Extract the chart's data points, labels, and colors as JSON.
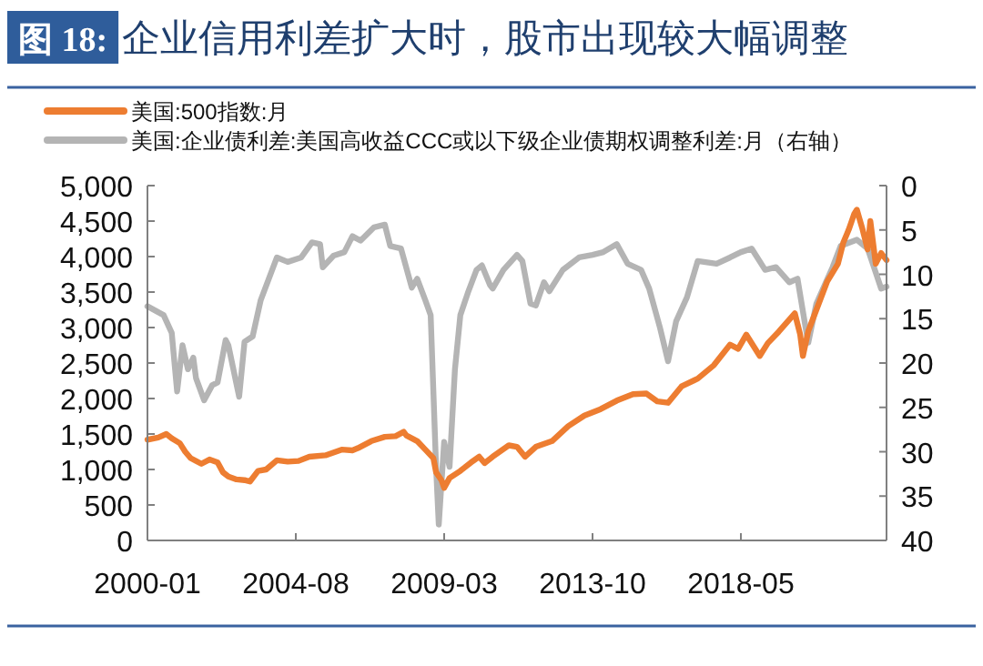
{
  "chart_data": {
    "type": "line",
    "title": "企业信用利差扩大时，股市出现较大幅调整",
    "annotations": [
      "图 18:"
    ],
    "legend": "top",
    "grid": false,
    "line_style": "solid",
    "marker": "none",
    "xlim": [
      "2000-01",
      "2022-11"
    ],
    "xticks": [
      "2000-01",
      "2004-08",
      "2009-03",
      "2013-10",
      "2018-05"
    ],
    "ylim": [
      0,
      5000
    ],
    "yticks": [
      {
        "value": 0,
        "label": "0"
      },
      {
        "value": 500,
        "label": "500"
      },
      {
        "value": 1000,
        "label": "1,000"
      },
      {
        "value": 1500,
        "label": "1,500"
      },
      {
        "value": 2000,
        "label": "2,000"
      },
      {
        "value": 2500,
        "label": "2,500"
      },
      {
        "value": 3000,
        "label": "3,000"
      },
      {
        "value": 3500,
        "label": "3,500"
      },
      {
        "value": 4000,
        "label": "4,000"
      },
      {
        "value": 4500,
        "label": "4,500"
      },
      {
        "value": 5000,
        "label": "5,000"
      }
    ],
    "y2lim": [
      40,
      0
    ],
    "y2ticks": [
      0,
      5,
      10,
      15,
      20,
      25,
      30,
      35,
      40
    ],
    "series": [
      {
        "name": "美国:企业债利差:美国高收益CCC或以下级企业债期权调整利差:月（右轴）",
        "color": "#b4b4b4",
        "axis": "y2",
        "x": [
          "2000-01",
          "2000-07",
          "2000-10",
          "2000-12",
          "2001-02",
          "2001-04",
          "2001-06",
          "2001-07",
          "2001-10",
          "2002-01",
          "2002-03",
          "2002-06",
          "2002-07",
          "2002-11",
          "2003-01",
          "2003-04",
          "2003-07",
          "2004-01",
          "2004-05",
          "2004-10",
          "2005-02",
          "2005-05",
          "2005-06",
          "2005-10",
          "2006-02",
          "2006-05",
          "2006-08",
          "2007-01",
          "2007-05",
          "2007-07",
          "2007-11",
          "2008-03",
          "2008-05",
          "2008-08",
          "2008-10",
          "2008-12",
          "2009-01",
          "2009-03",
          "2009-05",
          "2009-07",
          "2009-09",
          "2009-12",
          "2010-03",
          "2010-05",
          "2010-08",
          "2010-09",
          "2011-01",
          "2011-06",
          "2011-08",
          "2011-11",
          "2012-01",
          "2012-04",
          "2012-06",
          "2012-11",
          "2013-05",
          "2013-10",
          "2014-02",
          "2014-07",
          "2014-11",
          "2015-04",
          "2015-07",
          "2015-11",
          "2016-02",
          "2016-05",
          "2016-09",
          "2017-01",
          "2017-08",
          "2018-01",
          "2018-05",
          "2018-09",
          "2019-02",
          "2019-06",
          "2019-11",
          "2020-02",
          "2020-05",
          "2020-06",
          "2020-09",
          "2021-03",
          "2021-06",
          "2021-12",
          "2022-04",
          "2022-07",
          "2022-09",
          "2022-11"
        ],
        "values": [
          13.6,
          14.6,
          16.6,
          23.2,
          18,
          20.7,
          19.4,
          21.7,
          24.2,
          22.5,
          22.2,
          17.4,
          18,
          23.8,
          17.6,
          17,
          12.9,
          8.1,
          8.6,
          8.1,
          6.4,
          6.6,
          9.2,
          7.9,
          7.5,
          5.7,
          6.2,
          4.7,
          4.4,
          6.8,
          7.1,
          11.5,
          10.5,
          12.9,
          14.6,
          31.7,
          38.2,
          28.9,
          31.7,
          20.7,
          14.6,
          11.9,
          9.5,
          9.0,
          11.2,
          11.6,
          9.5,
          7.8,
          8.5,
          13.3,
          13.5,
          10.9,
          11.9,
          9.5,
          8.1,
          7.8,
          7.5,
          6.6,
          8.8,
          9.5,
          11.6,
          16,
          19.8,
          15.3,
          12.6,
          8.5,
          8.8,
          8.1,
          7.5,
          7.1,
          9.5,
          9.2,
          10.9,
          10.5,
          16,
          17.7,
          13.3,
          9.2,
          6.8,
          6.1,
          7.1,
          9.8,
          11.6,
          11.4
        ]
      },
      {
        "name": "美国:500指数:月",
        "color": "#ed7d31",
        "x": [
          "2000-01",
          "2000-05",
          "2000-08",
          "2000-10",
          "2001-01",
          "2001-03",
          "2001-05",
          "2001-09",
          "2001-12",
          "2002-03",
          "2002-05",
          "2002-07",
          "2002-10",
          "2003-01",
          "2003-03",
          "2003-06",
          "2003-09",
          "2004-01",
          "2004-05",
          "2004-09",
          "2005-01",
          "2005-07",
          "2006-01",
          "2006-05",
          "2006-07",
          "2006-12",
          "2007-05",
          "2007-09",
          "2007-12",
          "2008-01",
          "2008-05",
          "2008-08",
          "2008-11",
          "2008-12",
          "2009-02",
          "2009-03",
          "2009-05",
          "2009-09",
          "2010-01",
          "2010-04",
          "2010-06",
          "2010-09",
          "2011-03",
          "2011-06",
          "2011-09",
          "2012-01",
          "2012-07",
          "2013-01",
          "2013-07",
          "2014-01",
          "2014-07",
          "2015-01",
          "2015-06",
          "2015-10",
          "2016-02",
          "2016-07",
          "2017-01",
          "2017-07",
          "2018-01",
          "2018-04",
          "2018-07",
          "2018-12",
          "2019-03",
          "2019-07",
          "2020-01",
          "2020-03",
          "2020-04",
          "2020-06",
          "2020-09",
          "2021-01",
          "2021-05",
          "2021-07",
          "2021-09",
          "2021-11",
          "2021-12",
          "2022-02",
          "2022-04",
          "2022-05",
          "2022-07",
          "2022-09",
          "2022-11"
        ],
        "values": [
          1420,
          1450,
          1500,
          1440,
          1370,
          1250,
          1160,
          1080,
          1140,
          1100,
          960,
          900,
          860,
          850,
          830,
          980,
          1000,
          1130,
          1110,
          1120,
          1180,
          1200,
          1280,
          1270,
          1300,
          1400,
          1460,
          1470,
          1530,
          1480,
          1400,
          1280,
          1160,
          960,
          850,
          740,
          880,
          980,
          1100,
          1180,
          1090,
          1180,
          1340,
          1320,
          1180,
          1320,
          1400,
          1610,
          1760,
          1850,
          1970,
          2060,
          2070,
          1960,
          1940,
          2170,
          2280,
          2470,
          2760,
          2700,
          2900,
          2600,
          2780,
          2940,
          3200,
          2900,
          2600,
          2950,
          3250,
          3650,
          3900,
          4200,
          4380,
          4600,
          4660,
          4400,
          4100,
          4500,
          3900,
          4050,
          3950
        ]
      }
    ]
  }
}
